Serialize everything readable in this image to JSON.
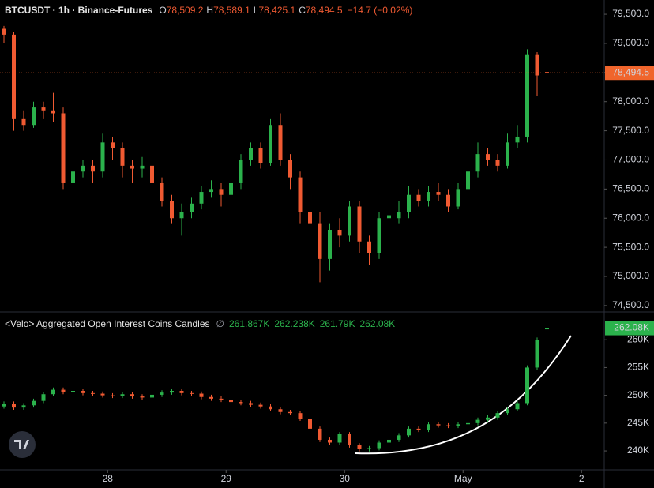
{
  "chart_data": [
    {
      "type": "candlestick",
      "title": "BTCUSDT · 1h · Binance-Futures",
      "legend": [
        {
          "key": "O",
          "value": "78,509.2"
        },
        {
          "key": "H",
          "value": "78,589.1"
        },
        {
          "key": "L",
          "value": "78,425.1"
        },
        {
          "key": "C",
          "value": "78,494.5"
        }
      ],
      "change": "−14.7 (−0.02%)",
      "up_color": "#2bb24c",
      "down_color": "#f05a32",
      "x": [
        -21,
        -19,
        -17,
        -15,
        -13,
        -11,
        -9,
        -7,
        -5,
        -3,
        -1,
        1,
        3,
        5,
        7,
        9,
        11,
        13,
        15,
        17,
        19,
        21,
        23,
        25,
        27,
        29,
        31,
        33,
        35,
        37,
        39,
        41,
        43,
        45,
        47,
        49,
        51,
        53,
        55,
        57,
        59,
        61,
        63,
        65,
        67,
        69,
        71,
        73,
        75,
        77,
        79,
        81,
        83,
        85,
        87,
        89
      ],
      "open": [
        79250,
        79150,
        77700,
        77600,
        77900,
        77850,
        77800,
        76600,
        76800,
        76900,
        76800,
        77300,
        77200,
        76900,
        76850,
        76900,
        76600,
        76300,
        76000,
        76100,
        76250,
        76450,
        76500,
        76400,
        76600,
        77000,
        77200,
        76950,
        77600,
        77000,
        76700,
        76100,
        75900,
        75300,
        75800,
        75700,
        76200,
        75600,
        75400,
        76000,
        76000,
        76100,
        76400,
        76300,
        76450,
        76400,
        76200,
        76500,
        76800,
        77100,
        77000,
        76900,
        77300,
        77400,
        78800,
        78509.2
      ],
      "high": [
        79300,
        79200,
        77850,
        78000,
        78000,
        78150,
        77900,
        76900,
        77000,
        77000,
        77450,
        77400,
        77300,
        77000,
        77050,
        77000,
        76700,
        76400,
        76250,
        76350,
        76550,
        76650,
        76600,
        76750,
        77100,
        77300,
        77300,
        77700,
        77800,
        77100,
        76800,
        76200,
        76100,
        75900,
        76000,
        76300,
        76300,
        75700,
        76100,
        76150,
        76300,
        76550,
        76500,
        76550,
        76600,
        76500,
        76600,
        76900,
        77300,
        77200,
        77100,
        77450,
        77600,
        78900,
        78850,
        78589.1
      ],
      "low": [
        79000,
        77500,
        77500,
        77550,
        77700,
        77650,
        76500,
        76500,
        76700,
        76600,
        76700,
        77000,
        76700,
        76600,
        76700,
        76450,
        76200,
        75900,
        75700,
        76000,
        76150,
        76350,
        76200,
        76300,
        76500,
        76900,
        76850,
        76900,
        76900,
        76500,
        75900,
        75800,
        74900,
        75100,
        75500,
        75600,
        75400,
        75200,
        75300,
        75850,
        75900,
        76000,
        76200,
        76200,
        76300,
        76100,
        76150,
        76400,
        76700,
        76900,
        76800,
        76850,
        77200,
        77300,
        78100,
        78425.1
      ],
      "close": [
        79150,
        77700,
        77600,
        77900,
        77850,
        77800,
        76600,
        76800,
        76900,
        76800,
        77300,
        77200,
        76900,
        76850,
        76900,
        76600,
        76300,
        76000,
        76100,
        76250,
        76450,
        76500,
        76400,
        76600,
        77000,
        77200,
        76950,
        77600,
        77000,
        76700,
        76100,
        75900,
        75300,
        75800,
        75700,
        76200,
        75600,
        75400,
        76000,
        76050,
        76100,
        76400,
        76300,
        76450,
        76400,
        76200,
        76500,
        76800,
        77100,
        77000,
        76900,
        77300,
        77400,
        78800,
        78450,
        78494.5
      ],
      "xlim": [
        -21.8,
        100.6
      ],
      "ylim": [
        74390,
        79745
      ],
      "yticks": [
        {
          "value": 74500,
          "label": "74,500.0"
        },
        {
          "value": 75000,
          "label": "75,000.0"
        },
        {
          "value": 75500,
          "label": "75,500.0"
        },
        {
          "value": 76000,
          "label": "76,000.0"
        },
        {
          "value": 76500,
          "label": "76,500.0"
        },
        {
          "value": 77000,
          "label": "77,000.0"
        },
        {
          "value": 77500,
          "label": "77,500.0"
        },
        {
          "value": 78000,
          "label": "78,000.0"
        },
        {
          "value": 78500,
          "label": "78,500.0"
        },
        {
          "value": 79000,
          "label": "79,000.0"
        },
        {
          "value": 79500,
          "label": "79,500.0"
        }
      ],
      "last_label": "78,494.5",
      "last_color": "#f0652c",
      "price_line": true
    },
    {
      "type": "candlestick",
      "title": "<Velo> Aggregated Open Interest Coins Candles",
      "legend_symbol": "∅",
      "legend": [
        "261.867K",
        "262.238K",
        "261.79K",
        "262.08K"
      ],
      "up_color": "#2bb24c",
      "down_color": "#f05a32",
      "x": [
        -21,
        -19,
        -17,
        -15,
        -13,
        -11,
        -9,
        -7,
        -5,
        -3,
        -1,
        1,
        3,
        5,
        7,
        9,
        11,
        13,
        15,
        17,
        19,
        21,
        23,
        25,
        27,
        29,
        31,
        33,
        35,
        37,
        39,
        41,
        43,
        45,
        47,
        49,
        51,
        53,
        55,
        57,
        59,
        61,
        63,
        65,
        67,
        69,
        71,
        73,
        75,
        77,
        79,
        81,
        83,
        85,
        87,
        89
      ],
      "open": [
        248.0,
        248.5,
        247.8,
        248.2,
        249.0,
        250.2,
        251.0,
        250.6,
        250.8,
        250.4,
        250.3,
        250.0,
        249.9,
        250.2,
        249.8,
        249.6,
        250.1,
        250.5,
        250.8,
        250.4,
        250.3,
        249.7,
        249.4,
        249.2,
        248.8,
        248.6,
        248.3,
        248.0,
        247.5,
        247.0,
        246.8,
        245.8,
        244.0,
        242.0,
        241.5,
        243.0,
        241.0,
        240.3,
        240.5,
        241.5,
        242.0,
        242.8,
        244.0,
        243.8,
        244.8,
        244.6,
        244.5,
        244.8,
        245.0,
        245.6,
        246.0,
        246.8,
        247.5,
        248.6,
        255.0,
        261.867
      ],
      "high": [
        248.9,
        248.9,
        248.6,
        249.4,
        250.6,
        251.4,
        251.4,
        251.2,
        251.2,
        250.8,
        250.7,
        250.4,
        250.6,
        250.6,
        250.2,
        250.5,
        250.9,
        251.2,
        251.2,
        250.8,
        250.7,
        250.1,
        249.8,
        249.6,
        249.2,
        249.0,
        248.7,
        248.4,
        247.9,
        247.4,
        247.2,
        246.2,
        244.4,
        242.4,
        243.4,
        243.4,
        241.4,
        240.9,
        241.9,
        242.4,
        243.2,
        244.4,
        244.4,
        245.2,
        245.2,
        245.0,
        245.2,
        245.4,
        246.0,
        246.4,
        247.2,
        247.9,
        249.0,
        255.4,
        260.4,
        262.238
      ],
      "low": [
        247.6,
        247.4,
        247.4,
        247.8,
        248.6,
        249.8,
        250.2,
        250.2,
        250.0,
        249.9,
        249.6,
        249.5,
        249.5,
        249.4,
        249.2,
        249.2,
        249.7,
        250.1,
        250.0,
        249.9,
        249.3,
        249.0,
        248.8,
        248.4,
        248.2,
        247.9,
        247.6,
        247.1,
        246.6,
        246.4,
        245.4,
        243.6,
        241.6,
        241.1,
        241.1,
        240.6,
        239.9,
        239.9,
        240.1,
        241.1,
        241.6,
        242.4,
        243.4,
        243.4,
        244.2,
        244.1,
        244.1,
        244.4,
        244.6,
        245.2,
        245.6,
        246.4,
        247.1,
        248.2,
        254.6,
        261.79
      ],
      "close": [
        248.5,
        247.8,
        248.2,
        249.0,
        250.2,
        251.0,
        250.6,
        250.8,
        250.4,
        250.3,
        250.0,
        249.9,
        250.2,
        249.8,
        249.6,
        250.1,
        250.5,
        250.8,
        250.4,
        250.3,
        249.7,
        249.4,
        249.2,
        248.8,
        248.6,
        248.3,
        248.0,
        247.5,
        247.0,
        246.8,
        245.8,
        244.0,
        242.0,
        241.5,
        243.0,
        241.0,
        240.3,
        240.5,
        241.5,
        242.0,
        242.8,
        244.0,
        243.8,
        244.8,
        244.6,
        244.5,
        244.8,
        245.0,
        245.6,
        246.0,
        246.8,
        247.5,
        248.6,
        255.0,
        260.0,
        262.08
      ],
      "xlim": [
        -21.8,
        100.6
      ],
      "ylim": [
        236.6,
        265
      ],
      "yticks": [
        {
          "value": 240,
          "label": "240K"
        },
        {
          "value": 245,
          "label": "245K"
        },
        {
          "value": 250,
          "label": "250K"
        },
        {
          "value": 255,
          "label": "255K"
        },
        {
          "value": 260,
          "label": "260K"
        }
      ],
      "xticks": [
        {
          "value": 0,
          "label": "28"
        },
        {
          "value": 24,
          "label": "29"
        },
        {
          "value": 48,
          "label": "30"
        },
        {
          "value": 72,
          "label": "May"
        },
        {
          "value": 96,
          "label": "2"
        }
      ],
      "last_label": "262.08K",
      "last_color": "#2bb24c"
    }
  ]
}
